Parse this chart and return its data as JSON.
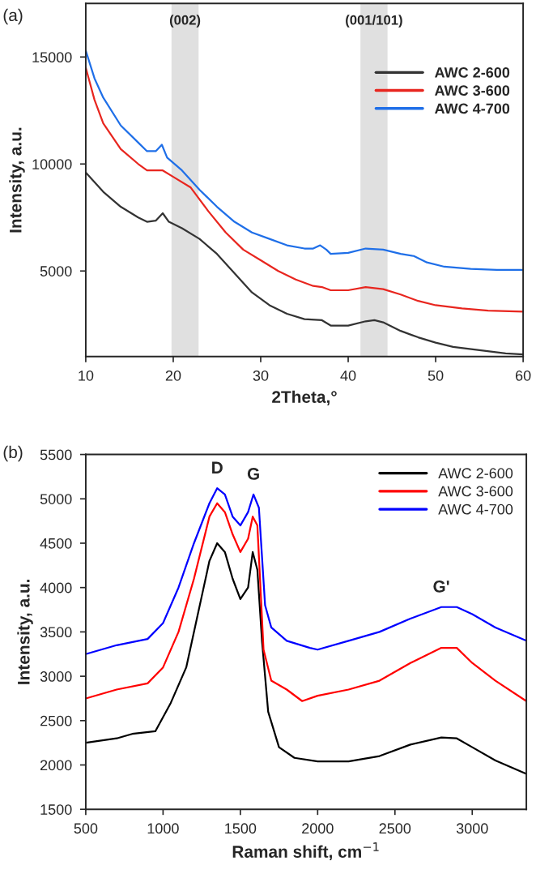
{
  "chart_data": [
    {
      "type": "line",
      "annotations": [
        "(a)"
      ],
      "xlabel": "2Theta,°",
      "ylabel": "Intensity, a.u.",
      "xlim": [
        10,
        60
      ],
      "xticks": [
        10,
        20,
        30,
        40,
        50,
        60
      ],
      "ylim": [
        1000,
        17500
      ],
      "yticks": [
        5000,
        10000,
        15000
      ],
      "legend": "right",
      "grid": false,
      "bands": [
        {
          "axis": "x",
          "from": 19.8,
          "to": 22.9,
          "label": "(002)",
          "color": "#e0e0e0"
        },
        {
          "axis": "x",
          "from": 41.4,
          "to": 44.5,
          "label": "(001/101)",
          "color": "#e0e0e0"
        }
      ],
      "series": [
        {
          "name": "AWC 2-600",
          "color": "#333333",
          "x": [
            10,
            12,
            14,
            16,
            17,
            18,
            18.8,
            19.5,
            21,
            23,
            25,
            27,
            29,
            31,
            33,
            35,
            37,
            38,
            40,
            42,
            43,
            44,
            46,
            48,
            50,
            52,
            55,
            58,
            60
          ],
          "values": [
            9600,
            8700,
            8000,
            7500,
            7300,
            7350,
            7700,
            7300,
            7000,
            6500,
            5800,
            4900,
            4000,
            3400,
            3000,
            2750,
            2700,
            2450,
            2450,
            2650,
            2700,
            2600,
            2200,
            1900,
            1650,
            1450,
            1300,
            1150,
            1100
          ]
        },
        {
          "name": "AWC 3-600",
          "color": "#e8261f",
          "x": [
            10,
            11,
            12,
            14,
            16,
            17,
            18,
            18.8,
            20,
            22,
            24,
            26,
            28,
            30,
            32,
            34,
            36,
            37,
            38,
            40,
            42,
            44,
            46,
            48,
            50,
            53,
            56,
            60
          ],
          "values": [
            14500,
            13000,
            11900,
            10700,
            10000,
            9700,
            9700,
            9700,
            9400,
            8900,
            7800,
            6800,
            6000,
            5500,
            5000,
            4600,
            4300,
            4250,
            4100,
            4100,
            4250,
            4150,
            3900,
            3600,
            3400,
            3250,
            3150,
            3100
          ]
        },
        {
          "name": "AWC 4-700",
          "color": "#1f6fe8",
          "x": [
            10,
            11,
            12,
            14,
            16,
            17,
            18,
            18.7,
            19.3,
            21,
            23,
            25,
            27,
            29,
            31,
            33,
            35,
            36,
            36.8,
            37.5,
            38,
            40,
            42,
            44,
            46,
            47.5,
            49,
            51,
            54,
            57,
            60
          ],
          "values": [
            15300,
            14000,
            13100,
            11800,
            11000,
            10600,
            10600,
            10900,
            10300,
            9700,
            8800,
            8000,
            7300,
            6800,
            6500,
            6200,
            6050,
            6050,
            6200,
            6000,
            5800,
            5850,
            6050,
            6000,
            5800,
            5700,
            5400,
            5200,
            5100,
            5050,
            5050
          ]
        }
      ]
    },
    {
      "type": "line",
      "annotations": [
        "(b)",
        {
          "text": "D",
          "x": 1350,
          "y": 5120
        },
        {
          "text": "G",
          "x": 1585,
          "y": 5050
        },
        {
          "text": "G'",
          "x": 2800,
          "y": 3780
        }
      ],
      "xlabel": "Raman shift, cm$^{−1}$",
      "ylabel": "Intensity, a.u.",
      "xlim": [
        500,
        3350
      ],
      "xticks": [
        500,
        1000,
        1500,
        2000,
        2500,
        3000
      ],
      "ylim": [
        1500,
        5500
      ],
      "yticks": [
        1500,
        2000,
        2500,
        3000,
        3500,
        4000,
        4500,
        5000,
        5500
      ],
      "legend": "top right",
      "grid": false,
      "series": [
        {
          "name": "AWC 2-600",
          "color": "#000000",
          "x": [
            500,
            700,
            800,
            950,
            1050,
            1150,
            1250,
            1300,
            1350,
            1400,
            1450,
            1500,
            1550,
            1580,
            1610,
            1640,
            1680,
            1750,
            1850,
            2000,
            2200,
            2400,
            2600,
            2800,
            2900,
            3000,
            3150,
            3350
          ],
          "values": [
            2250,
            2300,
            2350,
            2380,
            2700,
            3100,
            3900,
            4300,
            4500,
            4400,
            4100,
            3870,
            4000,
            4400,
            4200,
            3400,
            2600,
            2200,
            2080,
            2040,
            2040,
            2100,
            2230,
            2310,
            2300,
            2200,
            2050,
            1900
          ]
        },
        {
          "name": "AWC 3-600",
          "color": "#ff0000",
          "x": [
            500,
            700,
            900,
            1000,
            1100,
            1200,
            1300,
            1350,
            1400,
            1450,
            1500,
            1550,
            1580,
            1610,
            1650,
            1700,
            1800,
            1900,
            2000,
            2200,
            2400,
            2600,
            2800,
            2900,
            3000,
            3150,
            3350
          ],
          "values": [
            2750,
            2850,
            2920,
            3100,
            3500,
            4100,
            4800,
            4950,
            4850,
            4600,
            4400,
            4550,
            4800,
            4700,
            3300,
            2950,
            2850,
            2720,
            2780,
            2850,
            2950,
            3150,
            3320,
            3320,
            3150,
            2950,
            2720
          ]
        },
        {
          "name": "AWC 4-700",
          "color": "#0000ff",
          "x": [
            500,
            700,
            900,
            1000,
            1100,
            1200,
            1300,
            1350,
            1400,
            1450,
            1500,
            1550,
            1585,
            1620,
            1660,
            1700,
            1800,
            1950,
            2000,
            2200,
            2400,
            2600,
            2800,
            2900,
            3000,
            3150,
            3350
          ],
          "values": [
            3250,
            3350,
            3420,
            3600,
            4000,
            4500,
            4950,
            5120,
            5050,
            4800,
            4700,
            4850,
            5050,
            4900,
            3800,
            3550,
            3400,
            3320,
            3300,
            3400,
            3500,
            3650,
            3780,
            3780,
            3700,
            3550,
            3400
          ]
        }
      ]
    }
  ]
}
